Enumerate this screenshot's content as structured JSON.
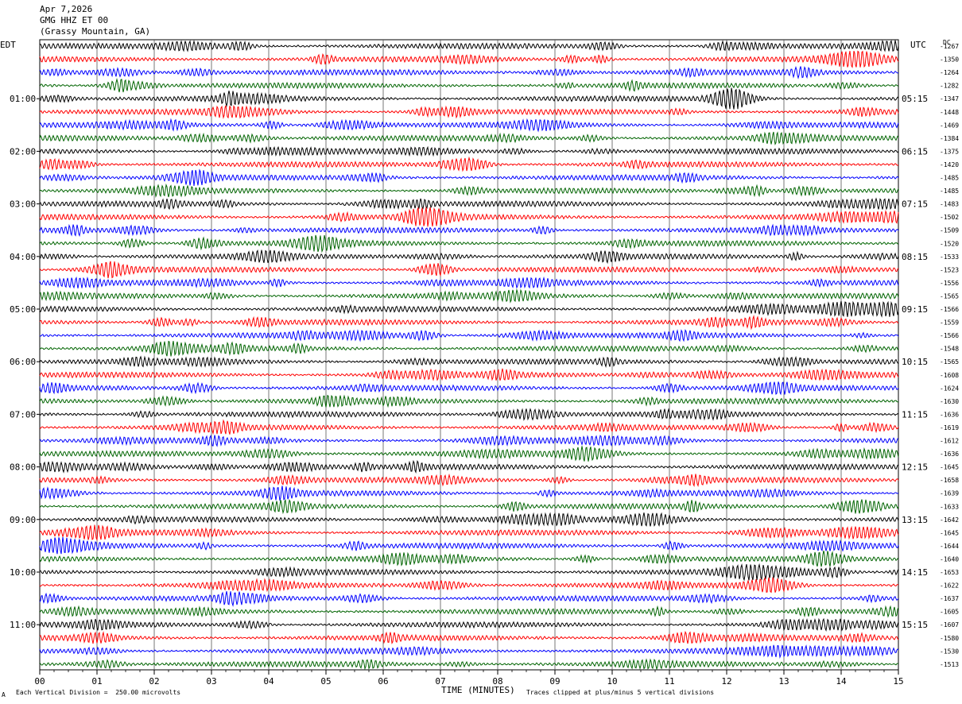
{
  "header": {
    "date": "Apr 7,2026",
    "station": "GMG HHZ ET 00",
    "location": "(Grassy Mountain, GA)"
  },
  "left_timezone": "EDT",
  "right_timezone": "UTC",
  "dc_label": "DC",
  "footer": {
    "scale_text": "Each Vertical Division =  250.00 microvolts",
    "xlabel": "TIME (MINUTES)",
    "clip_text": "Traces clipped at plus/minus 5 vertical divisions",
    "corner_mark": "A"
  },
  "chart_data": {
    "type": "line",
    "title": "GMG HHZ ET 00",
    "xlabel": "TIME (MINUTES)",
    "xlim": [
      0,
      15
    ],
    "x_ticks": [
      "00",
      "01",
      "02",
      "03",
      "04",
      "05",
      "06",
      "07",
      "08",
      "09",
      "10",
      "11",
      "12",
      "13",
      "14",
      "15"
    ],
    "rows": 48,
    "trace_colors": [
      "#000000",
      "#ff0000",
      "#0000ff",
      "#006400"
    ],
    "left_hour_labels": [
      "01:00",
      "02:00",
      "03:00",
      "04:00",
      "05:00",
      "06:00",
      "07:00",
      "08:00",
      "09:00",
      "10:00",
      "11:00"
    ],
    "right_hour_labels": [
      "05:15",
      "06:15",
      "07:15",
      "08:15",
      "09:15",
      "10:15",
      "11:15",
      "12:15",
      "13:15",
      "14:15",
      "15:15"
    ],
    "dc_offsets": [
      -1267,
      -1350,
      -1264,
      -1282,
      -1347,
      -1448,
      -1469,
      -1384,
      -1375,
      -1420,
      -1485,
      -1485,
      -1483,
      -1502,
      -1509,
      -1520,
      -1533,
      -1523,
      -1556,
      -1565,
      -1566,
      -1559,
      -1566,
      -1548,
      -1565,
      -1608,
      -1624,
      -1630,
      -1636,
      -1619,
      -1612,
      -1636,
      -1645,
      -1658,
      -1639,
      -1633,
      -1642,
      -1645,
      -1644,
      -1640,
      -1653,
      -1622,
      -1637,
      -1605,
      -1607,
      -1580,
      -1530,
      -1513
    ]
  }
}
